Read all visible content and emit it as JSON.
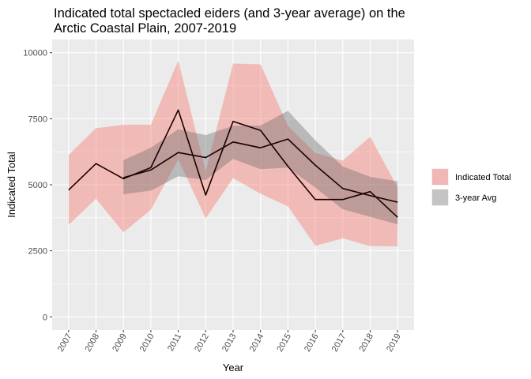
{
  "chart_data": {
    "type": "line",
    "title": "Indicated total spectacled eiders (and 3-year average) on the\nArctic Coastal Plain, 2007-2019",
    "xlabel": "Year",
    "ylabel": "Indicated Total",
    "x": [
      2007,
      2008,
      2009,
      2010,
      2011,
      2012,
      2013,
      2014,
      2015,
      2016,
      2017,
      2018,
      2019
    ],
    "x_tick_labels": [
      "2007",
      "2008",
      "2009",
      "2010",
      "2011",
      "2012",
      "2013",
      "2014",
      "2015",
      "2016",
      "2017",
      "2018",
      "2019"
    ],
    "ylim": [
      -500,
      10500
    ],
    "y_ticks": [
      0,
      2500,
      5000,
      7500,
      10000
    ],
    "y_tick_labels": [
      "0",
      "2500",
      "5000",
      "7500",
      "10000"
    ],
    "grid": true,
    "legend_position": "right",
    "series": [
      {
        "name": "Indicated Total",
        "color": "#F8766D",
        "x": [
          2007,
          2008,
          2009,
          2010,
          2011,
          2012,
          2013,
          2014,
          2015,
          2016,
          2017,
          2018,
          2019
        ],
        "values": [
          4800,
          5800,
          5230,
          5650,
          7830,
          4610,
          7400,
          7060,
          5700,
          4440,
          4440,
          4740,
          3770
        ],
        "lower": [
          3480,
          4470,
          3200,
          4060,
          5960,
          3730,
          5250,
          4660,
          4180,
          2690,
          2970,
          2680,
          2670
        ],
        "upper": [
          6130,
          7140,
          7270,
          7270,
          9700,
          5510,
          9590,
          9560,
          7230,
          6200,
          5910,
          6820,
          4890
        ]
      },
      {
        "name": "3-year Avg",
        "color": "#808080",
        "x": [
          2009,
          2010,
          2011,
          2012,
          2013,
          2014,
          2015,
          2016,
          2017,
          2018,
          2019
        ],
        "values": [
          5270,
          5560,
          6220,
          6030,
          6620,
          6400,
          6730,
          5740,
          4860,
          4590,
          4340
        ],
        "lower": [
          4640,
          4780,
          5320,
          5180,
          5980,
          5590,
          5650,
          4890,
          4070,
          3790,
          3500
        ],
        "upper": [
          5930,
          6400,
          7100,
          6880,
          7230,
          7240,
          7800,
          6680,
          5690,
          5300,
          5130
        ]
      }
    ]
  }
}
